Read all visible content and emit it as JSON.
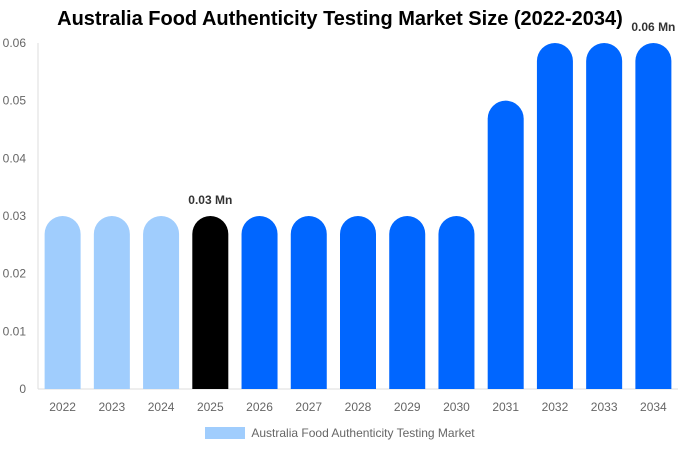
{
  "chart_data": {
    "type": "bar",
    "title": "Australia Food Authenticity Testing Market  Size (2022-2034)",
    "categories": [
      "2022",
      "2023",
      "2024",
      "2025",
      "2026",
      "2027",
      "2028",
      "2029",
      "2030",
      "2031",
      "2032",
      "2033",
      "2034"
    ],
    "series": [
      {
        "name": "Australia Food Authenticity Testing Market",
        "values": [
          0.03,
          0.03,
          0.03,
          0.03,
          0.03,
          0.03,
          0.03,
          0.03,
          0.03,
          0.05,
          0.06,
          0.06,
          0.06
        ]
      }
    ],
    "bar_colors": [
      "#a0cdfd",
      "#a0cdfd",
      "#a0cdfd",
      "#000000",
      "#0066ff",
      "#0066ff",
      "#0066ff",
      "#0066ff",
      "#0066ff",
      "#0066ff",
      "#0066ff",
      "#0066ff",
      "#0066ff"
    ],
    "data_labels": [
      {
        "category": "2025",
        "text": "0.03 Mn"
      },
      {
        "category": "2034",
        "text": "0.06 Mn"
      }
    ],
    "yticks": [
      "0",
      "0.01",
      "0.02",
      "0.03",
      "0.04",
      "0.05",
      "0.06"
    ],
    "ylim": [
      0,
      0.06
    ],
    "grid": false,
    "legend_placement": "bottom",
    "legend_color": "#a0cdfd"
  }
}
